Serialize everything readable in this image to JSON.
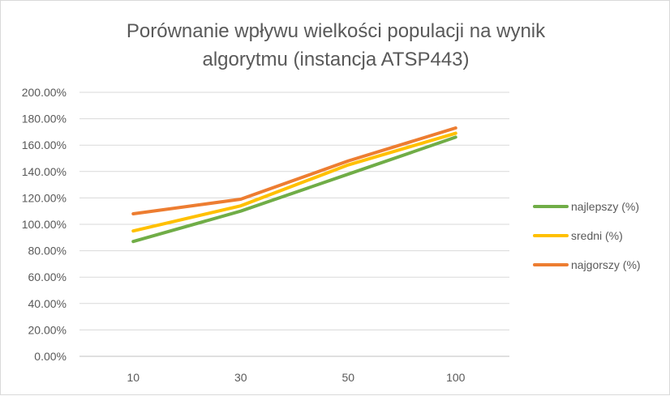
{
  "chart_data": {
    "type": "line",
    "title": [
      "Porównanie wpływu wielkości populacji na wynik",
      "algorytmu (instancja ATSP443)"
    ],
    "categories": [
      "10",
      "30",
      "50",
      "100"
    ],
    "ylim": [
      0,
      200
    ],
    "yticks": [
      "0.00%",
      "20.00%",
      "40.00%",
      "60.00%",
      "80.00%",
      "100.00%",
      "120.00%",
      "140.00%",
      "160.00%",
      "180.00%",
      "200.00%"
    ],
    "grid": true,
    "legend_position": "right",
    "series": [
      {
        "name": "najlepszy (%)",
        "color": "#70ad47",
        "values": [
          87,
          110,
          138,
          166
        ]
      },
      {
        "name": "sredni (%)",
        "color": "#ffc000",
        "values": [
          95,
          114,
          145,
          169
        ]
      },
      {
        "name": "najgorszy (%)",
        "color": "#ed7d31",
        "values": [
          108,
          119,
          148,
          173
        ]
      }
    ]
  }
}
